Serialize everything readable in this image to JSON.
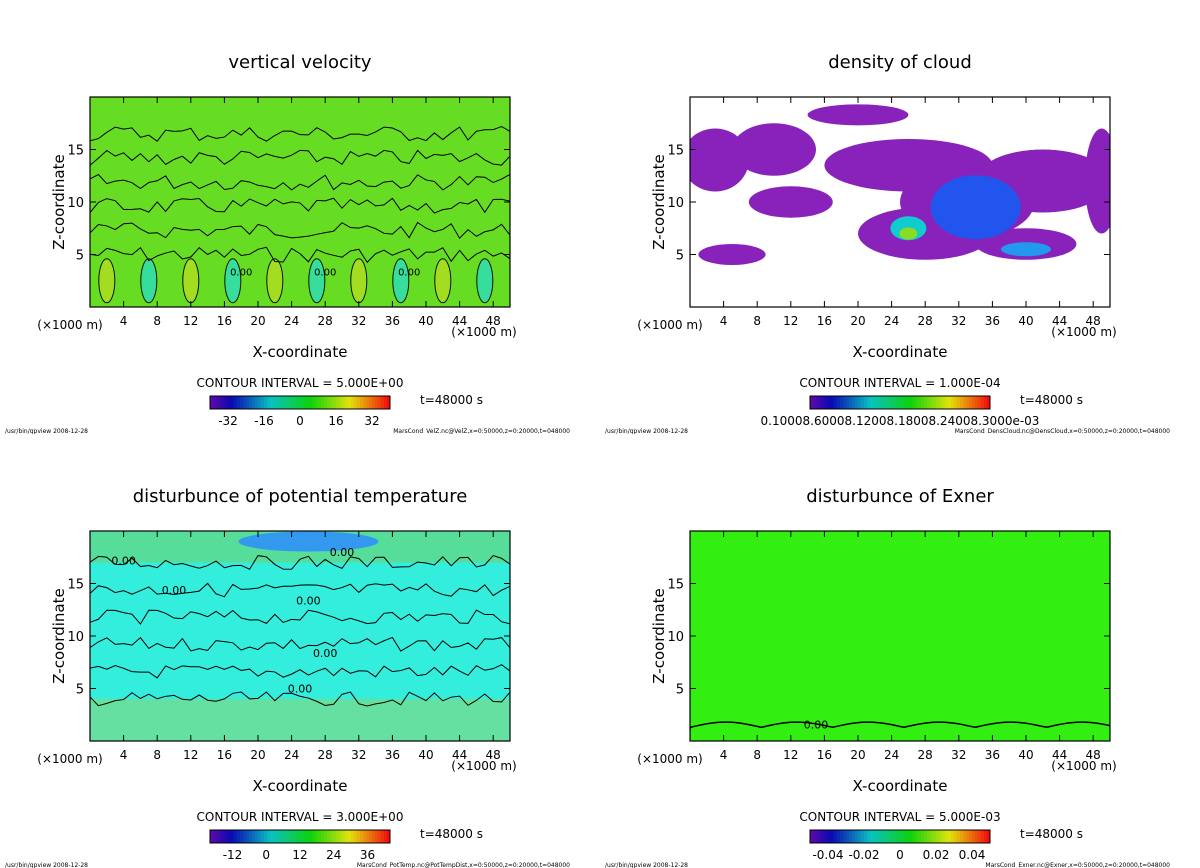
{
  "chart_data": [
    {
      "type": "heatmap",
      "title": "vertical velocity",
      "xlabel": "X-coordinate",
      "ylabel": "Z-coordinate",
      "x_unit": "(×1000 m)",
      "xlim": [
        0,
        50
      ],
      "ylim": [
        0,
        20
      ],
      "xticks": [
        "4",
        "8",
        "12",
        "16",
        "20",
        "24",
        "28",
        "32",
        "36",
        "40",
        "44",
        "48"
      ],
      "yticks": [
        "5",
        "10",
        "15"
      ],
      "contour_interval": "CONTOUR INTERVAL = 5.000E+00",
      "colorbar_ticks": [
        "-32",
        "-16",
        "0",
        "16",
        "32"
      ],
      "colorbar_range": [
        -40,
        40
      ],
      "time": "t=48000 s",
      "footer_left": "/usr/bin/gpview  2008-12-28",
      "footer_right": "MarsCond_VelZ.nc@VelZ,x=0:50000,z=0:20000,t=048000",
      "contour_labels": [
        "0.00",
        "0.00",
        "0.00"
      ],
      "base_color": "#66dd22"
    },
    {
      "type": "heatmap",
      "title": "density of cloud",
      "xlabel": "X-coordinate",
      "ylabel": "Z-coordinate",
      "x_unit": "(×1000 m)",
      "xlim": [
        0,
        50
      ],
      "ylim": [
        0,
        20
      ],
      "xticks": [
        "4",
        "8",
        "12",
        "16",
        "20",
        "24",
        "28",
        "32",
        "36",
        "40",
        "44",
        "48"
      ],
      "yticks": [
        "5",
        "10",
        "15"
      ],
      "contour_interval": "CONTOUR INTERVAL = 1.000E-04",
      "colorbar_label_text": "0.10008.60008.12008.18008.24008.3000e-03",
      "colorbar_range": [
        0,
        0.0003
      ],
      "time": "t=48000 s",
      "footer_left": "/usr/bin/gpview  2008-12-28",
      "footer_right": "MarsCond_DensCloud.nc@DensCloud,x=0:50000,z=0:20000,t=048000",
      "base_color": "#ffffff"
    },
    {
      "type": "heatmap",
      "title": "disturbunce of potential temperature",
      "xlabel": "X-coordinate",
      "ylabel": "Z-coordinate",
      "x_unit": "(×1000 m)",
      "xlim": [
        0,
        50
      ],
      "ylim": [
        0,
        20
      ],
      "xticks": [
        "4",
        "8",
        "12",
        "16",
        "20",
        "24",
        "28",
        "32",
        "36",
        "40",
        "44",
        "48"
      ],
      "yticks": [
        "5",
        "10",
        "15"
      ],
      "contour_interval": "CONTOUR INTERVAL = 3.000E+00",
      "colorbar_ticks": [
        "-12",
        "0",
        "12",
        "24",
        "36"
      ],
      "colorbar_range": [
        -20,
        44
      ],
      "time": "t=48000 s",
      "footer_left": "/usr/bin/gpview  2008-12-28",
      "footer_right": "MarsCond_PotTemp.nc@PotTempDist,x=0:50000,z=0:20000,t=048000",
      "contour_labels": [
        "0.00",
        "0.00",
        "0.00",
        "0.00",
        "0.00",
        "0.00"
      ],
      "base_color": "#33eedd"
    },
    {
      "type": "heatmap",
      "title": "disturbunce of Exner",
      "xlabel": "X-coordinate",
      "ylabel": "Z-coordinate",
      "x_unit": "(×1000 m)",
      "xlim": [
        0,
        50
      ],
      "ylim": [
        0,
        20
      ],
      "xticks": [
        "4",
        "8",
        "12",
        "16",
        "20",
        "24",
        "28",
        "32",
        "36",
        "40",
        "44",
        "48"
      ],
      "yticks": [
        "5",
        "10",
        "15"
      ],
      "contour_interval": "CONTOUR INTERVAL = 5.000E-03",
      "colorbar_ticks": [
        "-0.04",
        "-0.02",
        "0",
        "0.02",
        "0.04"
      ],
      "colorbar_range": [
        -0.05,
        0.05
      ],
      "time": "t=48000 s",
      "footer_left": "/usr/bin/gpview  2008-12-28",
      "footer_right": "MarsCond_Exner.nc@Exner,x=0:50000,z=0:20000,t=048000",
      "contour_labels": [
        "0.00"
      ],
      "base_color": "#33ee11"
    }
  ]
}
